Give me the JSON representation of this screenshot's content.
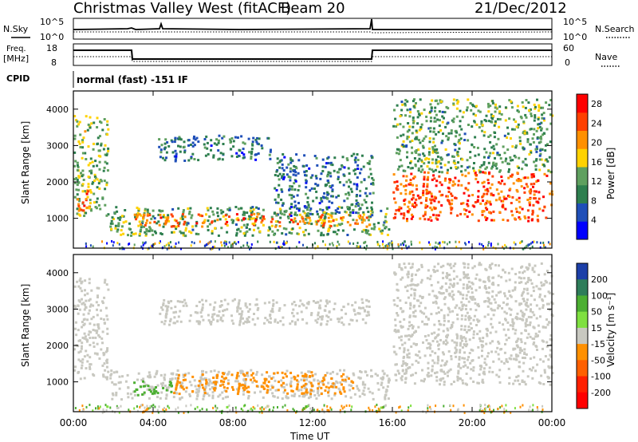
{
  "header": {
    "station": "Christmas Valley West (fitACF)",
    "beam": "Beam 20",
    "date": "21/Dec/2012"
  },
  "top_panels": {
    "nsky_label": "N.Sky",
    "nsearch_label": "N.Search",
    "noise_ticks": [
      "10^5",
      "10^0"
    ],
    "freq_label": "Freq.",
    "freq_unit": "[MHz]",
    "freq_ticks": [
      "18",
      "8"
    ],
    "nave_label": "Nave",
    "nave_ticks": [
      "60",
      "0"
    ],
    "cpid_label": "CPID",
    "cpid_text": "normal (fast) -151 IF"
  },
  "chart_data": [
    {
      "type": "heatmap",
      "title": "",
      "xlabel": "Time UT",
      "ylabel": "Slant Range [km]",
      "x_ticks": [
        "00:00",
        "04:00",
        "08:00",
        "12:00",
        "16:00",
        "20:00",
        "00:00"
      ],
      "xlim_hours": [
        0,
        24
      ],
      "y_ticks": [
        1000,
        2000,
        3000,
        4000
      ],
      "ylim": [
        180,
        4500
      ],
      "colorbar": {
        "label": "Power [dB]",
        "ticks": [
          4,
          8,
          12,
          16,
          20,
          24,
          28
        ],
        "range": [
          0,
          30
        ],
        "colors": [
          "#0000ff",
          "#1f4fb8",
          "#2e7f4f",
          "#5fa05f",
          "#ffd200",
          "#ff9000",
          "#ff4000",
          "#ff0000"
        ]
      },
      "echo_regions": [
        {
          "t_start": 0.0,
          "t_end": 1.7,
          "r_low": 1100,
          "r_high": 3900,
          "power": 14
        },
        {
          "t_start": 0.1,
          "t_end": 0.8,
          "r_low": 1200,
          "r_high": 1800,
          "power": 24
        },
        {
          "t_start": 1.8,
          "t_end": 15.8,
          "r_low": 550,
          "r_high": 1350,
          "power": 12
        },
        {
          "t_start": 3.0,
          "t_end": 14.8,
          "r_low": 800,
          "r_high": 1150,
          "power": 22
        },
        {
          "t_start": 4.2,
          "t_end": 10.0,
          "r_low": 2600,
          "r_high": 3300,
          "power": 8
        },
        {
          "t_start": 10.0,
          "t_end": 15.0,
          "r_low": 1100,
          "r_high": 2800,
          "power": 8
        },
        {
          "t_start": 16.0,
          "t_end": 24.0,
          "r_low": 950,
          "r_high": 2300,
          "power": 24
        },
        {
          "t_start": 16.0,
          "t_end": 24.0,
          "r_low": 2300,
          "r_high": 4300,
          "power": 12
        }
      ]
    },
    {
      "type": "heatmap",
      "title": "",
      "xlabel": "Time UT",
      "ylabel": "Slant Range [km]",
      "x_ticks": [
        "00:00",
        "04:00",
        "08:00",
        "12:00",
        "16:00",
        "20:00",
        "00:00"
      ],
      "xlim_hours": [
        0,
        24
      ],
      "y_ticks": [
        1000,
        2000,
        3000,
        4000
      ],
      "ylim": [
        180,
        4500
      ],
      "colorbar": {
        "label": "Velocity [m s^-1]",
        "ticks": [
          "200",
          "100",
          "50",
          "15",
          "-15",
          "-50",
          "-100",
          "-200"
        ],
        "colors": [
          "#1c3fa8",
          "#2e7d5a",
          "#4caf32",
          "#7fe040",
          "#c8c8c0",
          "#ff9000",
          "#ff6000",
          "#ff2000",
          "#ff0000"
        ]
      },
      "echo_regions": [
        {
          "t_start": 0.0,
          "t_end": 1.7,
          "r_low": 1100,
          "r_high": 3900,
          "velocity": 0
        },
        {
          "t_start": 1.8,
          "t_end": 15.8,
          "r_low": 550,
          "r_high": 1350,
          "velocity": 0
        },
        {
          "t_start": 3.0,
          "t_end": 5.0,
          "r_low": 650,
          "r_high": 1050,
          "velocity": 60
        },
        {
          "t_start": 5.0,
          "t_end": 14.0,
          "r_low": 700,
          "r_high": 1300,
          "velocity": -40
        },
        {
          "t_start": 4.2,
          "t_end": 15.0,
          "r_low": 2600,
          "r_high": 3300,
          "velocity": 0
        },
        {
          "t_start": 16.0,
          "t_end": 24.0,
          "r_low": 950,
          "r_high": 2300,
          "velocity": 0
        },
        {
          "t_start": 16.0,
          "t_end": 24.0,
          "r_low": 2300,
          "r_high": 4300,
          "velocity": 0
        }
      ]
    }
  ],
  "axis_texts": {
    "ylabel": "Slant Range [km]",
    "xlabel": "Time UT",
    "power_label": "Power [dB]",
    "velocity_label": "Velocity [m s⁻¹]"
  }
}
